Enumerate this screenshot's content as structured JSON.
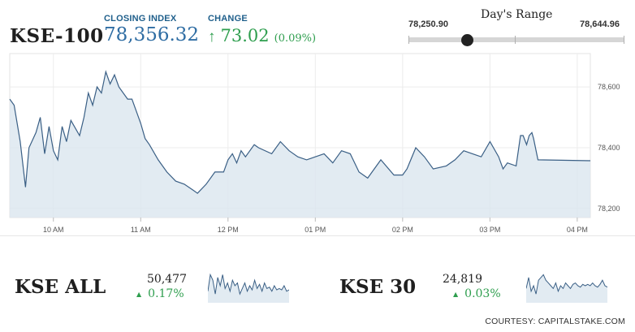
{
  "header": {
    "index_name": "KSE-100",
    "closing_label": "CLOSING INDEX",
    "closing_value": "78,356.32",
    "change_label": "CHANGE",
    "change_arrow": "↑",
    "change_value": "73.02",
    "change_pct": "(0.09%)"
  },
  "days_range": {
    "title": "Day's Range",
    "low": "78,250.90",
    "high": "78,644.96",
    "current_fraction": 0.27
  },
  "colors": {
    "line": "#3a5f85",
    "area": "#dbe6ef",
    "positive": "#2e9e4e",
    "accent": "#2f6da3"
  },
  "chart_data": [
    {
      "type": "area",
      "x_ticks": [
        "10 AM",
        "11 AM",
        "12 PM",
        "01 PM",
        "02 PM",
        "03 PM",
        "04 PM"
      ],
      "y_ticks": [
        "78,200",
        "78,400",
        "78,600"
      ],
      "y_tick_values": [
        78200,
        78400,
        78600
      ],
      "ylim": [
        78170,
        78710
      ],
      "xlim": [
        9.5,
        16.15
      ],
      "grid": true,
      "x": [
        9.5,
        9.55,
        9.62,
        9.68,
        9.72,
        9.8,
        9.85,
        9.9,
        9.95,
        10.0,
        10.05,
        10.1,
        10.15,
        10.2,
        10.3,
        10.35,
        10.4,
        10.45,
        10.5,
        10.55,
        10.6,
        10.65,
        10.7,
        10.75,
        10.8,
        10.85,
        10.9,
        10.95,
        11.0,
        11.05,
        11.1,
        11.2,
        11.3,
        11.4,
        11.5,
        11.6,
        11.65,
        11.75,
        11.85,
        11.95,
        12.0,
        12.05,
        12.1,
        12.15,
        12.2,
        12.3,
        12.35,
        12.5,
        12.6,
        12.7,
        12.8,
        12.9,
        13.0,
        13.1,
        13.2,
        13.3,
        13.4,
        13.5,
        13.6,
        13.75,
        13.9,
        14.0,
        14.05,
        14.15,
        14.25,
        14.35,
        14.5,
        14.6,
        14.7,
        14.8,
        14.9,
        15.0,
        15.1,
        15.15,
        15.2,
        15.3,
        15.35,
        15.38,
        15.42,
        15.45,
        15.48,
        15.5,
        15.55,
        16.15
      ],
      "series": [
        {
          "values": [
            78560,
            78540,
            78420,
            78270,
            78400,
            78450,
            78500,
            78380,
            78470,
            78390,
            78360,
            78470,
            78420,
            78490,
            78440,
            78500,
            78580,
            78540,
            78600,
            78580,
            78650,
            78610,
            78640,
            78600,
            78580,
            78560,
            78560,
            78520,
            78480,
            78430,
            78410,
            78360,
            78320,
            78290,
            78280,
            78260,
            78250,
            78280,
            78320,
            78320,
            78360,
            78380,
            78350,
            78390,
            78370,
            78410,
            78400,
            78380,
            78420,
            78390,
            78370,
            78360,
            78370,
            78380,
            78350,
            78390,
            78380,
            78320,
            78300,
            78360,
            78310,
            78310,
            78330,
            78400,
            78370,
            78330,
            78340,
            78360,
            78390,
            78380,
            78370,
            78420,
            78370,
            78330,
            78350,
            78340,
            78440,
            78440,
            78410,
            78440,
            78450,
            78430,
            78360,
            78357
          ]
        }
      ]
    },
    {
      "type": "area",
      "title": "KSE ALL",
      "value": "50,477",
      "change": "0.17%",
      "change_arrow": "▲",
      "series": [
        {
          "values": [
            0.3,
            0.9,
            0.7,
            0.2,
            0.8,
            0.5,
            0.9,
            0.4,
            0.6,
            0.3,
            0.7,
            0.5,
            0.6,
            0.2,
            0.4,
            0.6,
            0.3,
            0.5,
            0.35,
            0.7,
            0.4,
            0.55,
            0.3,
            0.6,
            0.4,
            0.45,
            0.3,
            0.5,
            0.35,
            0.4,
            0.35,
            0.5,
            0.3,
            0.35
          ]
        }
      ]
    },
    {
      "type": "area",
      "title": "KSE 30",
      "value": "24,819",
      "change": "0.03%",
      "change_arrow": "▲",
      "series": [
        {
          "values": [
            0.4,
            0.8,
            0.3,
            0.5,
            0.2,
            0.7,
            0.8,
            0.9,
            0.7,
            0.6,
            0.5,
            0.4,
            0.6,
            0.3,
            0.5,
            0.4,
            0.6,
            0.5,
            0.4,
            0.55,
            0.6,
            0.5,
            0.45,
            0.55,
            0.5,
            0.55,
            0.5,
            0.6,
            0.5,
            0.45,
            0.55,
            0.7,
            0.5,
            0.45
          ]
        }
      ]
    }
  ],
  "courtesy": "COURTESY: CAPITALSTAKE.COM"
}
